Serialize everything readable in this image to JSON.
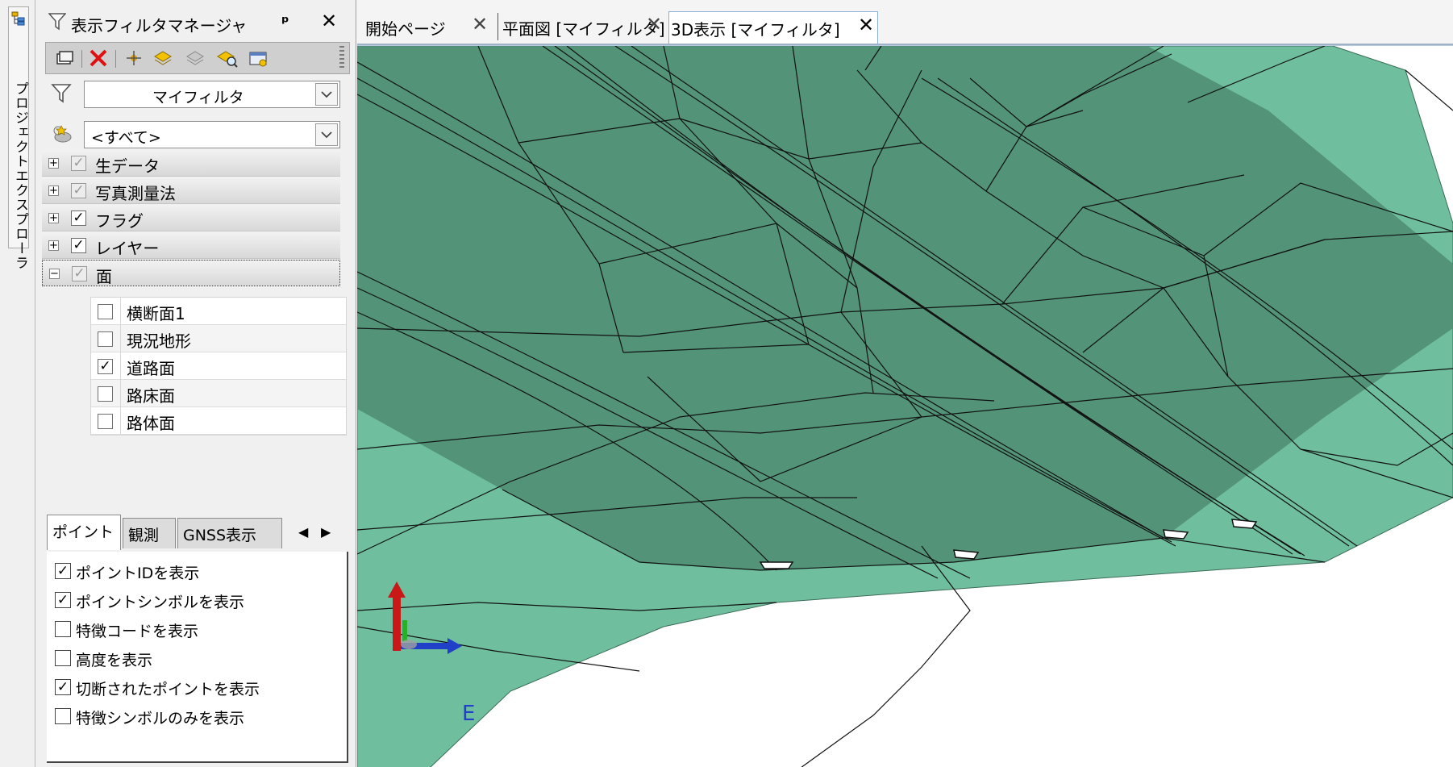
{
  "side_strip": {
    "label": "プロジェクトエクスプローラ"
  },
  "filter_panel": {
    "title": "表示フィルタマネージャ",
    "pin_glyph": "ᵖ",
    "close_glyph": "✕",
    "filter_combo_value": "マイフィルタ",
    "group_combo_value": "<すべて>",
    "tree_items": [
      {
        "label": "生データ",
        "checked": true,
        "dim": true,
        "expander": "+"
      },
      {
        "label": "写真測量法",
        "checked": true,
        "dim": true,
        "expander": "+"
      },
      {
        "label": "フラグ",
        "checked": true,
        "dim": false,
        "expander": "+"
      },
      {
        "label": "レイヤー",
        "checked": true,
        "dim": false,
        "expander": "+"
      },
      {
        "label": "面",
        "checked": true,
        "dim": true,
        "expander": "−"
      }
    ],
    "surfaces": [
      {
        "label": "横断面1",
        "checked": false
      },
      {
        "label": "現況地形",
        "checked": false
      },
      {
        "label": "道路面",
        "checked": true
      },
      {
        "label": "路床面",
        "checked": false
      },
      {
        "label": "路体面",
        "checked": false
      }
    ],
    "tabs": [
      "ポイント",
      "観測",
      "GNSS表示"
    ],
    "tab_arrow_left": "◀",
    "tab_arrow_right": "▶",
    "options": [
      {
        "label": "ポイントIDを表示",
        "checked": true
      },
      {
        "label": "ポイントシンボルを表示",
        "checked": true
      },
      {
        "label": "特徴コードを表示",
        "checked": false
      },
      {
        "label": "高度を表示",
        "checked": false
      },
      {
        "label": "切断されたポイントを表示",
        "checked": true
      },
      {
        "label": "特徴シンボルのみを表示",
        "checked": false
      }
    ]
  },
  "document_tabs": [
    {
      "label": "開始ページ",
      "close": "✕",
      "active": false
    },
    {
      "label": "平面図 [マイフィルタ]",
      "close": "✕",
      "active": false
    },
    {
      "label": "3D表示 [マイフィルタ]",
      "close": "✕",
      "active": true
    }
  ],
  "viewport": {
    "axis_label": "E",
    "surface_color": "#6fbf9f",
    "road_color": "#4f8c72"
  }
}
